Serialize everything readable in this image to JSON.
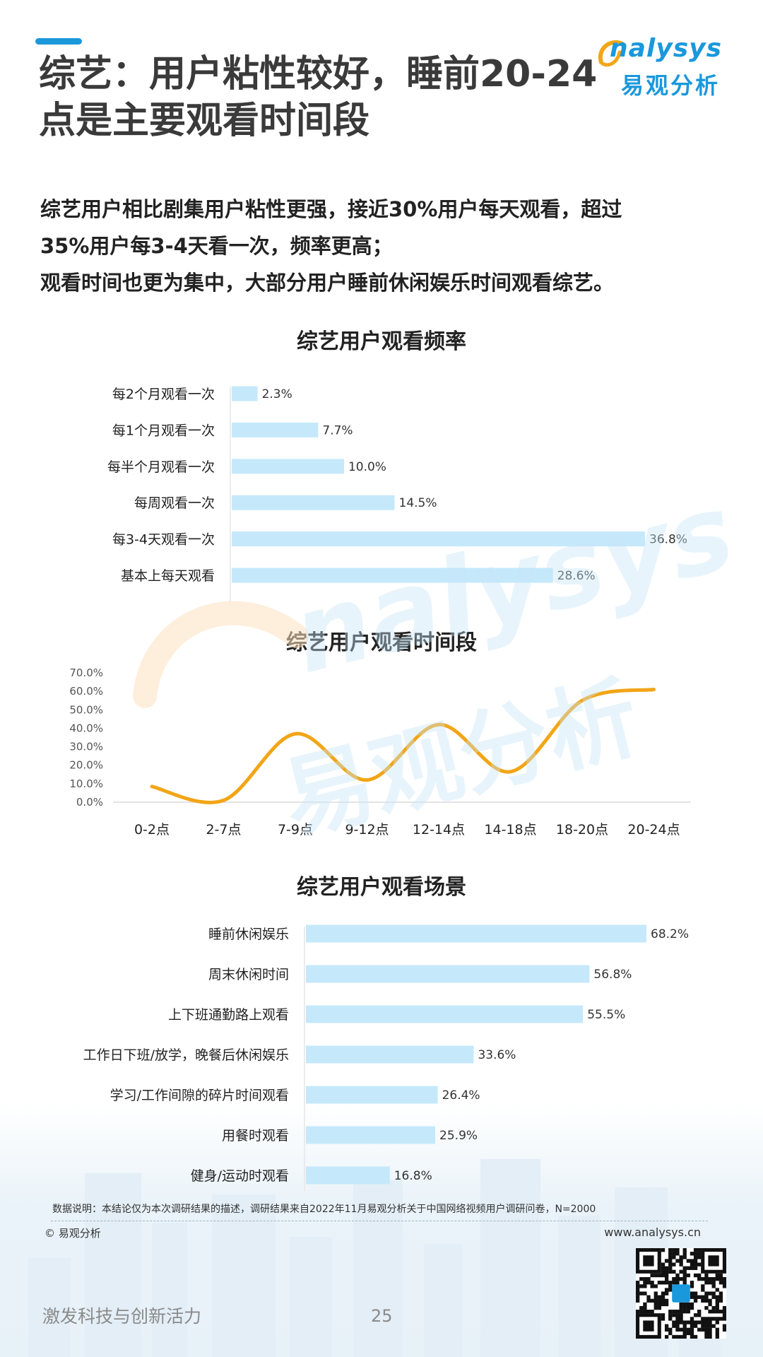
{
  "header": {
    "title": "综艺：用户粘性较好，睡前20-24点是主要观看时间段",
    "logo_en": "nalysys",
    "logo_cn": "易观分析"
  },
  "summary": {
    "lines": [
      "综艺用户相比剧集用户粘性更强，接近30%用户每天观看，超过",
      "35%用户每3-4天看一次，频率更高；",
      "观看时间也更为集中，大部分用户睡前休闲娱乐时间观看综艺。"
    ]
  },
  "watermark": {
    "en": "nalysys",
    "cn": "易观分析"
  },
  "chart_data": [
    {
      "type": "bar",
      "orientation": "horizontal",
      "title": "综艺用户观看频率",
      "categories": [
        "每2个月观看一次",
        "每1个月观看一次",
        "每半个月观看一次",
        "每周观看一次",
        "每3-4天观看一次",
        "基本上每天观看"
      ],
      "values": [
        2.3,
        7.7,
        10.0,
        14.5,
        36.8,
        28.6
      ],
      "labels": [
        "2.3%",
        "7.7%",
        "10.0%",
        "14.5%",
        "36.8%",
        "28.6%"
      ],
      "xlim": [
        0,
        36.8
      ],
      "color": "#c5e9fb"
    },
    {
      "type": "line",
      "title": "综艺用户观看时间段",
      "categories": [
        "0-2点",
        "2-7点",
        "7-9点",
        "9-12点",
        "12-14点",
        "14-18点",
        "18-20点",
        "20-24点"
      ],
      "values": [
        8.5,
        1.0,
        37.0,
        12.0,
        42.0,
        16.5,
        55.0,
        61.0
      ],
      "ylim": [
        0,
        70
      ],
      "yticks": [
        "0.0%",
        "10.0%",
        "20.0%",
        "30.0%",
        "40.0%",
        "50.0%",
        "60.0%",
        "70.0%"
      ],
      "smooth": true,
      "color": "#f2a516"
    },
    {
      "type": "bar",
      "orientation": "horizontal",
      "title": "综艺用户观看场景",
      "categories": [
        "睡前休闲娱乐",
        "周末休闲时间",
        "上下班通勤路上观看",
        "工作日下班/放学，晚餐后休闲娱乐",
        "学习/工作间隙的碎片时间观看",
        "用餐时观看",
        "健身/运动时观看"
      ],
      "values": [
        68.2,
        56.8,
        55.5,
        33.6,
        26.4,
        25.9,
        16.8
      ],
      "labels": [
        "68.2%",
        "56.8%",
        "55.5%",
        "33.6%",
        "26.4%",
        "25.9%",
        "16.8%"
      ],
      "xlim": [
        0,
        68.2
      ],
      "color": "#c5e9fb"
    }
  ],
  "footer": {
    "note": "数据说明：本结论仅为本次调研结果的描述，调研结果来自2022年11月易观分析关于中国网络视频用户调研问卷，N=2000",
    "copyright": "© 易观分析",
    "website": "www.analysys.cn",
    "slogan": "激发科技与创新活力",
    "page_number": "25"
  }
}
